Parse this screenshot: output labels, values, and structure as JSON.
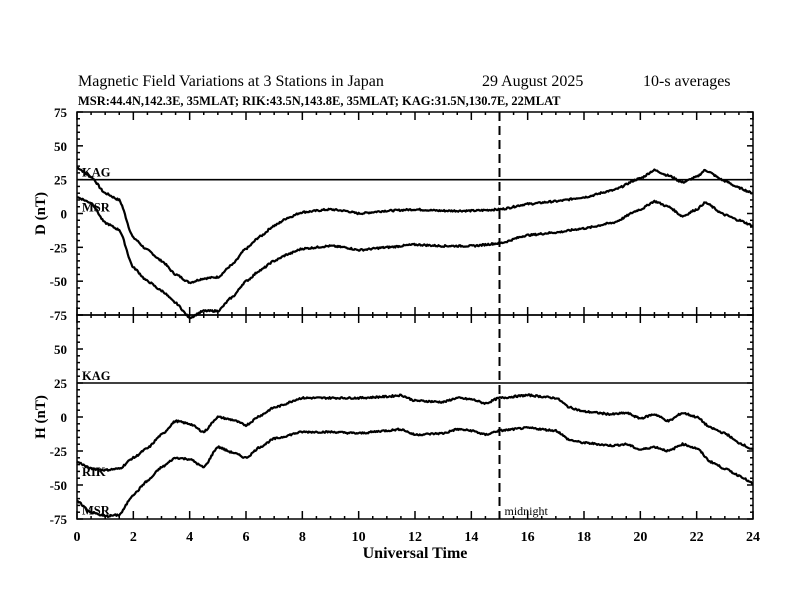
{
  "header": {
    "title": "Magnetic Field Variations at 3 Stations in Japan",
    "date": "29  August  2025",
    "averaging": "10-s averages",
    "stations": "MSR:44.4N,142.3E, 35MLAT;  RIK:43.5N,143.8E, 35MLAT;  KAG:31.5N,130.7E, 22MLAT"
  },
  "chart_data": [
    {
      "type": "line",
      "panel": "D",
      "ylabel": "D (nT)",
      "xlabel": "Universal Time",
      "xlim": [
        0,
        24
      ],
      "ylim": [
        -75,
        75
      ],
      "yticks": [
        "-75",
        "-50",
        "-25",
        "0",
        "25",
        "50",
        "75"
      ],
      "xticks": [
        "0",
        "2",
        "4",
        "6",
        "8",
        "10",
        "12",
        "14",
        "16",
        "18",
        "20",
        "22",
        "24"
      ],
      "annotations": [
        {
          "text": "midnight",
          "x": 15
        }
      ],
      "series": [
        {
          "name": "KAG",
          "label": "KAG",
          "x": [
            0,
            24
          ],
          "values": [
            25,
            25
          ]
        },
        {
          "name": "RIK",
          "label": "",
          "x": [
            0,
            0.5,
            1,
            1.5,
            2,
            2.5,
            3,
            3.5,
            4,
            4.5,
            5,
            5.5,
            6,
            6.5,
            7,
            7.5,
            8,
            9,
            9.5,
            10,
            11,
            12,
            13,
            14,
            15,
            16,
            17,
            18,
            19,
            20,
            20.5,
            21,
            21.5,
            22,
            22.3,
            23,
            23.5,
            24
          ],
          "values": [
            34,
            27,
            15,
            10,
            -18,
            -27,
            -35,
            -45,
            -51,
            -48,
            -47,
            -38,
            -26,
            -17,
            -9,
            -3,
            1,
            3,
            2,
            0,
            2,
            3,
            2,
            2,
            3,
            7,
            9,
            12,
            17,
            26,
            32,
            28,
            23,
            27,
            32,
            24,
            19,
            15
          ]
        },
        {
          "name": "MSR",
          "label": "MSR",
          "x": [
            0,
            0.5,
            1,
            1.5,
            2,
            2.5,
            3,
            3.5,
            4,
            4.5,
            5,
            5.5,
            6,
            6.5,
            7,
            7.5,
            8,
            9,
            9.5,
            10,
            11,
            12,
            13,
            14,
            15,
            16,
            17,
            18,
            19,
            20,
            20.5,
            21,
            21.5,
            22,
            22.3,
            23,
            23.5,
            24
          ],
          "values": [
            12,
            8,
            -7,
            -12,
            -40,
            -50,
            -57,
            -66,
            -77,
            -72,
            -72,
            -62,
            -50,
            -42,
            -35,
            -30,
            -26,
            -24,
            -25,
            -27,
            -25,
            -23,
            -24,
            -24,
            -22,
            -16,
            -14,
            -11,
            -7,
            3,
            9,
            5,
            -2,
            3,
            8,
            -1,
            -5,
            -9
          ]
        }
      ]
    },
    {
      "type": "line",
      "panel": "H",
      "ylabel": "H (nT)",
      "xlabel": "Universal Time",
      "xlim": [
        0,
        24
      ],
      "ylim": [
        -75,
        75
      ],
      "yticks": [
        "-75",
        "-50",
        "-25",
        "0",
        "25",
        "50",
        "75"
      ],
      "xticks": [
        "0",
        "2",
        "4",
        "6",
        "8",
        "10",
        "12",
        "14",
        "16",
        "18",
        "20",
        "22",
        "24"
      ],
      "series": [
        {
          "name": "KAG",
          "label": "KAG",
          "x": [
            0,
            24
          ],
          "values": [
            25,
            25
          ]
        },
        {
          "name": "RIK",
          "label": "RIK",
          "x": [
            0,
            0.5,
            1,
            1.5,
            2,
            2.5,
            3,
            3.5,
            4,
            4.5,
            5,
            5.5,
            6,
            6.5,
            7,
            8,
            9,
            10,
            11,
            11.5,
            12,
            13,
            13.5,
            14,
            14.5,
            15,
            16,
            17,
            17.5,
            18,
            19,
            19.5,
            20,
            20.5,
            21,
            21.5,
            22,
            22.5,
            23,
            23.5,
            24
          ],
          "values": [
            -33,
            -38,
            -39,
            -38,
            -30,
            -23,
            -13,
            -3,
            -5,
            -11,
            0,
            -2,
            -6,
            1,
            7,
            14,
            14,
            14,
            15,
            16,
            12,
            11,
            14,
            13,
            10,
            14,
            16,
            14,
            7,
            4,
            2,
            3,
            -1,
            2,
            -3,
            3,
            0,
            -8,
            -12,
            -19,
            -24
          ]
        },
        {
          "name": "MSR",
          "label": "MSR",
          "x": [
            0,
            0.5,
            1,
            1.5,
            2,
            2.5,
            3,
            3.5,
            4,
            4.5,
            5,
            5.5,
            6,
            6.5,
            7,
            8,
            9,
            10,
            11,
            11.5,
            12,
            13,
            13.5,
            14,
            14.5,
            15,
            16,
            17,
            17.5,
            18,
            19,
            19.5,
            20,
            20.5,
            21,
            21.5,
            22,
            22.5,
            23,
            23.5,
            24
          ],
          "values": [
            -62,
            -70,
            -73,
            -72,
            -57,
            -47,
            -37,
            -30,
            -31,
            -37,
            -22,
            -26,
            -30,
            -22,
            -16,
            -11,
            -11,
            -12,
            -10,
            -9,
            -13,
            -12,
            -9,
            -10,
            -13,
            -10,
            -8,
            -10,
            -17,
            -19,
            -21,
            -20,
            -24,
            -22,
            -25,
            -20,
            -23,
            -33,
            -38,
            -43,
            -49
          ]
        }
      ]
    }
  ]
}
